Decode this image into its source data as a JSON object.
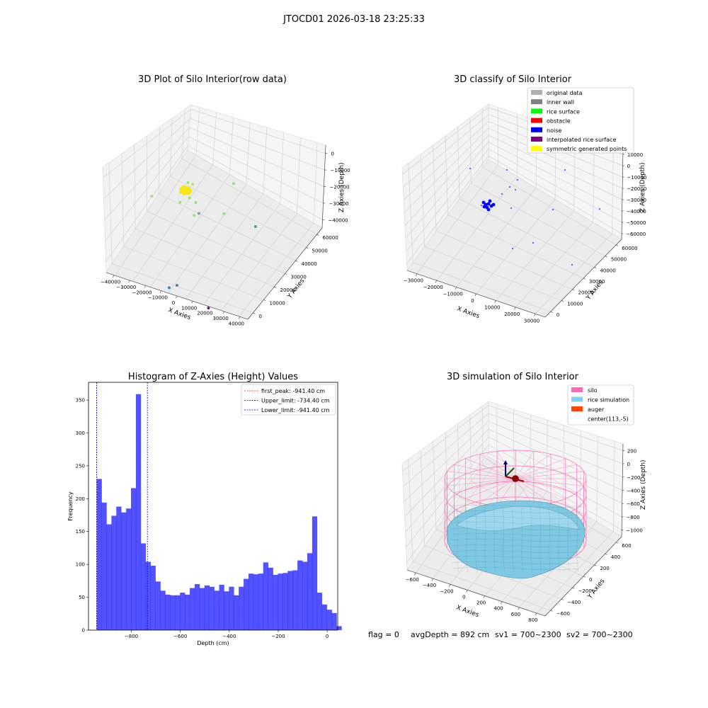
{
  "figure_title": "JTOCD01 2026-03-18 23:25:33",
  "colors": {
    "hist_bar": "#0000ff",
    "first_peak": "#ff0000",
    "limit_lines": "#0000aa",
    "silo_wire": "#ff69b4",
    "rice": "#7ec8e3",
    "auger": "#ff4500"
  },
  "status_line": {
    "flag": "flag = 0",
    "avg_depth": "avgDepth = 892 cm",
    "sv1": "sv1 = 700~2300",
    "sv2": "sv2 = 700~2300"
  },
  "chart_data": [
    {
      "type": "scatter",
      "projection": "3d",
      "title": "3D Plot of Silo Interior(row data)",
      "xlabel": "X Axies",
      "ylabel": "Y Axies",
      "zlabel": "Z Axies (Depth)",
      "xticks": [
        "−40000",
        "−30000",
        "−20000",
        "−10000",
        "0",
        "10000",
        "20000",
        "30000",
        "40000"
      ],
      "yticks": [
        "0",
        "10000",
        "20000",
        "30000",
        "40000",
        "50000",
        "60000"
      ],
      "zticks": [
        "0",
        "−10000",
        "−20000",
        "−30000",
        "−40000"
      ],
      "grid": true,
      "points": [
        {
          "x": -20000,
          "y": 5000,
          "z": -12000,
          "color": "#9be07a"
        },
        {
          "x": -5000,
          "y": 15000,
          "z": -11000,
          "color": "#9be07a"
        },
        {
          "x": -2000,
          "y": 15000,
          "z": -11000,
          "color": "#b8e070"
        },
        {
          "x": -10000,
          "y": 15000,
          "z": -20000,
          "color": "#9be07a"
        },
        {
          "x": -4000,
          "y": 15000,
          "z": -17000,
          "color": "#9be07a"
        },
        {
          "x": 0,
          "y": 15000,
          "z": -18000,
          "color": "#9be07a"
        },
        {
          "x": 2000,
          "y": 15000,
          "z": -22000,
          "color": "#8899aa"
        },
        {
          "x": -5000,
          "y": 20000,
          "z": -28000,
          "color": "#9be07a"
        },
        {
          "x": 20000,
          "y": 20000,
          "z": -10000,
          "color": "#9be07a"
        },
        {
          "x": 10000,
          "y": 25000,
          "z": -28000,
          "color": "#9be07a"
        },
        {
          "x": 30000,
          "y": 25000,
          "z": -29000,
          "color": "#3aa0a0"
        },
        {
          "x": 0,
          "y": 0,
          "z": -40000,
          "color": "#3a88bb"
        },
        {
          "x": -5000,
          "y": 0,
          "z": -42000,
          "color": "#3a88bb"
        },
        {
          "x": 20000,
          "y": 0,
          "z": -45000,
          "color": "#662288"
        }
      ],
      "cluster_color": "#f5e61a"
    },
    {
      "type": "scatter",
      "projection": "3d",
      "title": "3D classify of Silo Interior",
      "xlabel": "X Axies",
      "ylabel": "Y Axies",
      "zlabel": "Z Axies (Depth)",
      "xticks": [
        "−30000",
        "−20000",
        "−10000",
        "0",
        "10000",
        "20000",
        "30000"
      ],
      "yticks": [
        "0",
        "10000",
        "20000",
        "30000",
        "40000",
        "50000",
        "60000"
      ],
      "zticks": [
        "10000",
        "0",
        "−10000",
        "−20000",
        "−30000",
        "−40000",
        "−50000",
        "−60000"
      ],
      "grid": true,
      "legend_position": "top-right",
      "legend": [
        {
          "label": "original data",
          "color": "#b0b0b0"
        },
        {
          "label": "inner wall",
          "color": "#808080"
        },
        {
          "label": "rice surface",
          "color": "#00ff00"
        },
        {
          "label": "obstacle",
          "color": "#ff0000"
        },
        {
          "label": "noise",
          "color": "#0000ff"
        },
        {
          "label": "interpolated rice surface",
          "color": "#800080"
        },
        {
          "label": "symmetric generated points",
          "color": "#ffff00"
        }
      ]
    },
    {
      "type": "bar",
      "title": "Histogram of Z-Axies (Height) Values",
      "xlabel": "Depth (cm)",
      "ylabel": "Frequency",
      "xlim": [
        -975,
        43
      ],
      "ylim": [
        0,
        377
      ],
      "xticks": [
        -800,
        -600,
        -400,
        -200,
        0
      ],
      "yticks": [
        0,
        50,
        100,
        150,
        200,
        250,
        300,
        350
      ],
      "bin_start": -941.4,
      "bin_width": 20,
      "values": [
        230,
        194,
        161,
        174,
        188,
        179,
        185,
        216,
        359,
        132,
        104,
        98,
        74,
        60,
        54,
        53,
        53,
        57,
        54,
        64,
        70,
        64,
        68,
        66,
        60,
        69,
        59,
        66,
        53,
        66,
        78,
        86,
        85,
        86,
        103,
        95,
        84,
        86,
        87,
        90,
        91,
        106,
        104,
        117,
        173,
        57,
        39,
        31,
        26,
        6
      ],
      "legend_position": "top-right",
      "lines": [
        {
          "label": "first_peak: -941.40 cm",
          "x": -941.4,
          "color": "#ff0000"
        },
        {
          "label": "Upper_limit: -734.40 cm",
          "x": -734.4,
          "color": "#0000aa"
        },
        {
          "label": "Lower_limit: -941.40 cm",
          "x": -941.4,
          "color": "#0000aa"
        }
      ]
    },
    {
      "type": "surface",
      "projection": "3d",
      "title": "3D simulation of Silo Interior",
      "xlabel": "X Axies",
      "ylabel": "Y Axies",
      "zlabel": "Z Axies (Depth)",
      "xticks": [
        "−600",
        "−400",
        "−200",
        "0",
        "200",
        "400",
        "600",
        "800"
      ],
      "yticks": [
        "−600",
        "−400",
        "−200",
        "0",
        "200",
        "400",
        "600"
      ],
      "zticks": [
        "200",
        "0",
        "−200",
        "−400",
        "−600",
        "−800",
        "−1000"
      ],
      "grid": true,
      "legend_position": "top-right",
      "legend": [
        {
          "label": "silo",
          "color": "#ff69b4"
        },
        {
          "label": "rice simulation",
          "color": "#87ceeb"
        },
        {
          "label": "auger",
          "color": "#ff4500"
        },
        {
          "label": "center(113,-5)",
          "color": null
        }
      ]
    }
  ]
}
